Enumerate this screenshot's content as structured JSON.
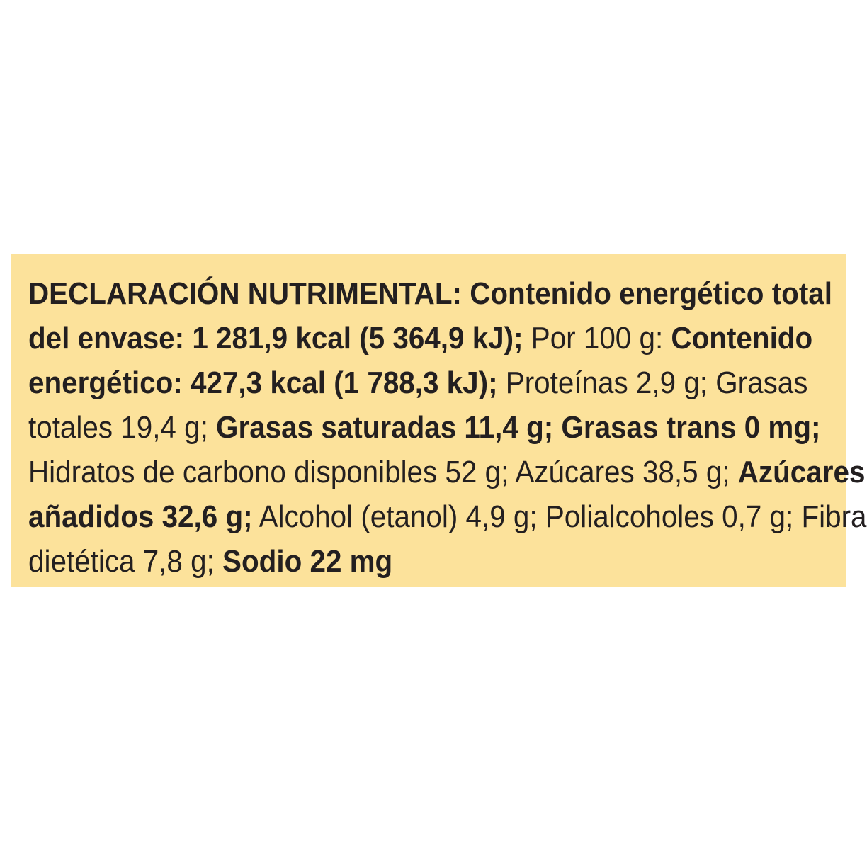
{
  "label": {
    "lines": [
      [
        {
          "text": "DECLARACIÓN NUTRIMENTAL: ",
          "bold": true
        },
        {
          "text": "Contenido energético total",
          "bold": true
        }
      ],
      [
        {
          "text": "del envase: 1 281,9 kcal (5 364,9 kJ);",
          "bold": true
        },
        {
          "text": " Por 100 g: ",
          "bold": false
        },
        {
          "text": "Contenido",
          "bold": true
        }
      ],
      [
        {
          "text": "energético: 427,3 kcal (1 788,3 kJ);",
          "bold": true
        },
        {
          "text": " Proteínas 2,9 g; Grasas",
          "bold": false
        }
      ],
      [
        {
          "text": "totales 19,4 g; ",
          "bold": false
        },
        {
          "text": "Grasas saturadas 11,4 g; Grasas trans 0 mg;",
          "bold": true
        }
      ],
      [
        {
          "text": "Hidratos de carbono disponibles 52 g; Azúcares 38,5 g; ",
          "bold": false
        },
        {
          "text": "Azúcares",
          "bold": true
        }
      ],
      [
        {
          "text": "añadidos 32,6 g;",
          "bold": true
        },
        {
          "text": " Alcohol (etanol) 4,9 g; Polialcoholes 0,7 g; Fibra",
          "bold": false
        }
      ],
      [
        {
          "text": "dietética 7,8 g; ",
          "bold": false
        },
        {
          "text": "Sodio 22 mg",
          "bold": true
        }
      ]
    ]
  },
  "colors": {
    "panel": "#fce29b",
    "text": "#231f20"
  }
}
